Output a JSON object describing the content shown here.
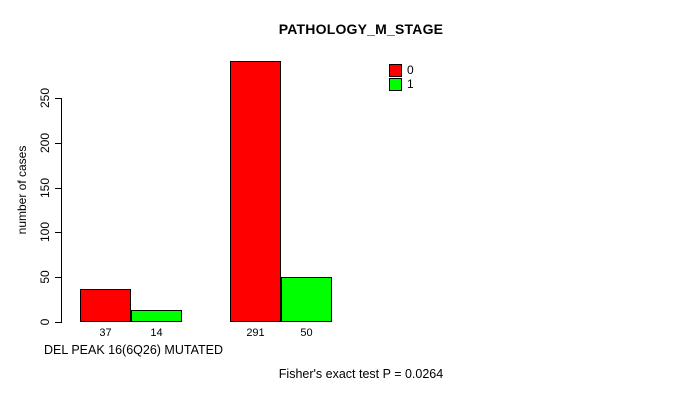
{
  "chart_data": {
    "type": "bar",
    "title": "PATHOLOGY_M_STAGE",
    "ylabel": "number of cases",
    "xlabel": "DEL PEAK 16(6Q26) MUTATED",
    "annotation": "Fisher's exact test P = 0.0264",
    "ylim": [
      0,
      250
    ],
    "yticks": [
      0,
      50,
      100,
      150,
      200,
      250
    ],
    "grid": false,
    "legend_position": "top-right",
    "categories": [
      "",
      ""
    ],
    "series": [
      {
        "name": "0",
        "color": "#FF0000",
        "values": [
          37,
          291
        ]
      },
      {
        "name": "1",
        "color": "#00FF00",
        "values": [
          14,
          50
        ]
      }
    ],
    "bar_value_labels": [
      [
        "37",
        "291"
      ],
      [
        "14",
        "50"
      ]
    ]
  },
  "colors": {
    "background": "#FFFFFF",
    "axis": "#000000",
    "bar_border": "#000000",
    "red_series": "#FF0000",
    "green_series": "#00FF00"
  }
}
